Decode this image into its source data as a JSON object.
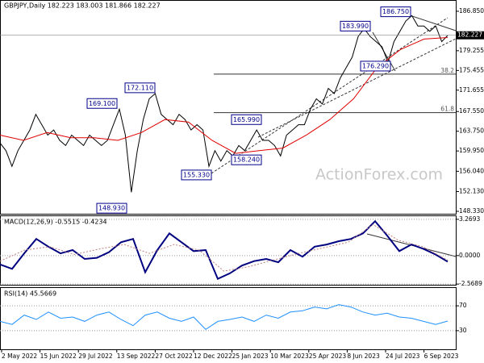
{
  "chart_data": [
    {
      "type": "line",
      "title": "GBPJPY,Daily 182.223 183.003 181.866 182.227",
      "ylim": [
        147.86,
        189.02
      ],
      "yticks": [
        {
          "value": 186.85,
          "label": "186.850"
        },
        {
          "value": 179.255,
          "label": "179.255"
        },
        {
          "value": 175.455,
          "label": "175.455"
        },
        {
          "value": 171.655,
          "label": "171.655"
        },
        {
          "value": 167.55,
          "label": "167.550"
        },
        {
          "value": 163.75,
          "label": "163.750"
        },
        {
          "value": 159.95,
          "label": "159.950"
        },
        {
          "value": 156.04,
          "label": "156.040"
        },
        {
          "value": 152.13,
          "label": "152.130"
        },
        {
          "value": 148.33,
          "label": "148.330"
        }
      ],
      "last_price": {
        "value": 182.227,
        "label": "182.227"
      },
      "series": [
        {
          "color": "#000000",
          "values": [
            161.5,
            160,
            157,
            160,
            162,
            164,
            167,
            165,
            163,
            164,
            162,
            161,
            163,
            162,
            161,
            163,
            162,
            161,
            162,
            165,
            168,
            163,
            152,
            160,
            166,
            170,
            171,
            167,
            166,
            165,
            167,
            166,
            164,
            165,
            164,
            157,
            160,
            158,
            160,
            159,
            161,
            160,
            162,
            164,
            162,
            162,
            161,
            159,
            163,
            164,
            165,
            165,
            168,
            170,
            169,
            172,
            171,
            174,
            176,
            178,
            182,
            183.5,
            182,
            181,
            180,
            177,
            181,
            183,
            185,
            186,
            184,
            184,
            183,
            184,
            181,
            182.2
          ]
        },
        {
          "color": "#e00000",
          "values": [
            163,
            162,
            163.5,
            162.5,
            162.5,
            162,
            163.5,
            166,
            165.5,
            162,
            159.5,
            160,
            160.5,
            163,
            166,
            170,
            176,
            179.5,
            181.5,
            181.8
          ]
        }
      ],
      "annotations": [
        {
          "value": 169.1,
          "label": "169.100"
        },
        {
          "value": 172.11,
          "label": "172.110"
        },
        {
          "value": 148.93,
          "label": "148.930"
        },
        {
          "value": 155.33,
          "label": "155.330"
        },
        {
          "value": 165.99,
          "label": "165.990"
        },
        {
          "value": 158.24,
          "label": "158.240"
        },
        {
          "value": 183.99,
          "label": "183.990"
        },
        {
          "value": 176.29,
          "label": "176.290"
        },
        {
          "value": 186.75,
          "label": "186.750"
        }
      ],
      "fib_levels": [
        {
          "ratio": 38.2,
          "price": 174.75
        },
        {
          "ratio": 61.8,
          "price": 167.33
        }
      ],
      "x_labels": [
        "2 May 2022",
        "15 Jun 2022",
        "29 Jul 2022",
        "13 Sep 2022",
        "27 Oct 2022",
        "12 Dec 2022",
        "25 Jan 2023",
        "10 Mar 2023",
        "25 Apr 2023",
        "8 Jun 2023",
        "24 Jul 2023",
        "6 Sep 2023"
      ],
      "watermark": "ActionForex.com"
    },
    {
      "type": "line",
      "title": "MACD(12,26,9) -0.5515 -0.4234",
      "ylim": [
        -2.63,
        3.625
      ],
      "yticks": [
        3.2693,
        {
          "value": 0,
          "label": "0.0000"
        },
        -2.5689
      ],
      "series": [
        {
          "color": "#000080",
          "values": [
            -0.8,
            -1.2,
            0.2,
            1.5,
            0.8,
            0.2,
            0.5,
            -0.3,
            -0.2,
            0.3,
            1.2,
            1.5,
            -1.5,
            0.5,
            2.0,
            1.2,
            0.4,
            0.5,
            -2.1,
            -1.6,
            -0.9,
            -0.5,
            -0.3,
            -0.6,
            0.5,
            -0.1,
            0.8,
            1.0,
            1.3,
            1.5,
            2.0,
            3.1,
            1.8,
            0.4,
            1.0,
            0.6,
            0.1,
            -0.55
          ]
        },
        {
          "color": "#c08080",
          "dash": true,
          "values": [
            -0.5,
            0.5,
            0.8,
            0.1,
            0.6,
            1.0,
            0.2,
            1.0,
            0.5,
            -1.4,
            -1.0,
            -0.4,
            0.2,
            0.7,
            1.2,
            2.8,
            1.4,
            0.8,
            -0.42
          ]
        }
      ]
    },
    {
      "type": "line",
      "title": "RSI(14) 45.5669",
      "ylim": [
        0,
        100
      ],
      "yticks": [
        30,
        70
      ],
      "series": [
        {
          "color": "#1e90ff",
          "values": [
            45,
            40,
            55,
            48,
            60,
            50,
            52,
            45,
            55,
            60,
            48,
            38,
            55,
            60,
            50,
            45,
            52,
            32,
            45,
            48,
            52,
            45,
            55,
            50,
            60,
            62,
            68,
            65,
            72,
            68,
            60,
            55,
            58,
            52,
            50,
            45,
            40,
            45.5
          ]
        }
      ]
    }
  ]
}
